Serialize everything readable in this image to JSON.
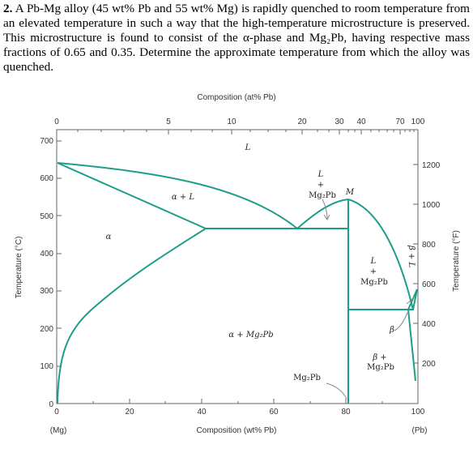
{
  "problem": {
    "number": "2.",
    "text": "A Pb-Mg alloy (45 wt% Pb and 55 wt% Mg) is rapidly quenched to room temperature from an elevated temperature in such a way that the high-temperature microstructure is preserved. This microstructure is found to consist of the α-phase and Mg₂Pb, having respective mass fractions of 0.65 and 0.35. Determine the approximate temperature from which the alloy was quenched."
  },
  "diagram": {
    "top_axis_title": "Composition (at% Pb)",
    "top_ticks": [
      "0",
      "5",
      "10",
      "20",
      "30",
      "40",
      "70",
      "100"
    ],
    "bottom_axis_title": "Composition (wt% Pb)",
    "bottom_ticks": [
      "0",
      "20",
      "40",
      "60",
      "80",
      "100"
    ],
    "bottom_end_left": "(Mg)",
    "bottom_end_right": "(Pb)",
    "left_axis_title": "Temperature (°C)",
    "left_ticks": [
      "0",
      "100",
      "200",
      "300",
      "400",
      "500",
      "600",
      "700"
    ],
    "right_axis_title": "Temperature (°F)",
    "right_ticks": [
      "200",
      "400",
      "600",
      "800",
      "1000",
      "1200"
    ],
    "labels": {
      "L_top": "L",
      "L_plus": "L",
      "plus1": "+",
      "mg2pb_1": "Mg₂Pb",
      "M": "M",
      "alpha_L": "α + L",
      "alpha": "α",
      "alpha_mg2pb": "α + Mg₂Pb",
      "L_right": "L",
      "plus2": "+",
      "mg2pb_2": "Mg₂Pb",
      "beta_plus_L": "β + L",
      "beta": "β",
      "beta_plus": "β +",
      "mg2pb_3": "Mg₂Pb",
      "mg2pb_bottom": "Mg₂Pb"
    },
    "colors": {
      "phase_line": "#1e9e8a",
      "axis": "#666666",
      "callout": "#888888"
    }
  }
}
